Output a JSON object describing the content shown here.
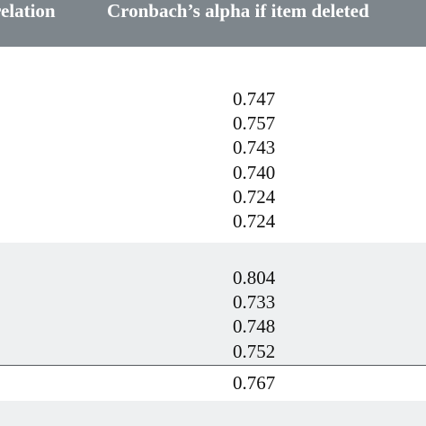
{
  "header": {
    "col1_label": "relation",
    "col2_label": "Cronbach’s alpha if item deleted"
  },
  "group1": {
    "values": [
      "0.747",
      "0.757",
      "0.743",
      "0.740",
      "0.724",
      "0.724"
    ]
  },
  "group2": {
    "values": [
      "0.804",
      "0.733",
      "0.748",
      "0.752"
    ]
  },
  "total": {
    "value": "0.767"
  }
}
